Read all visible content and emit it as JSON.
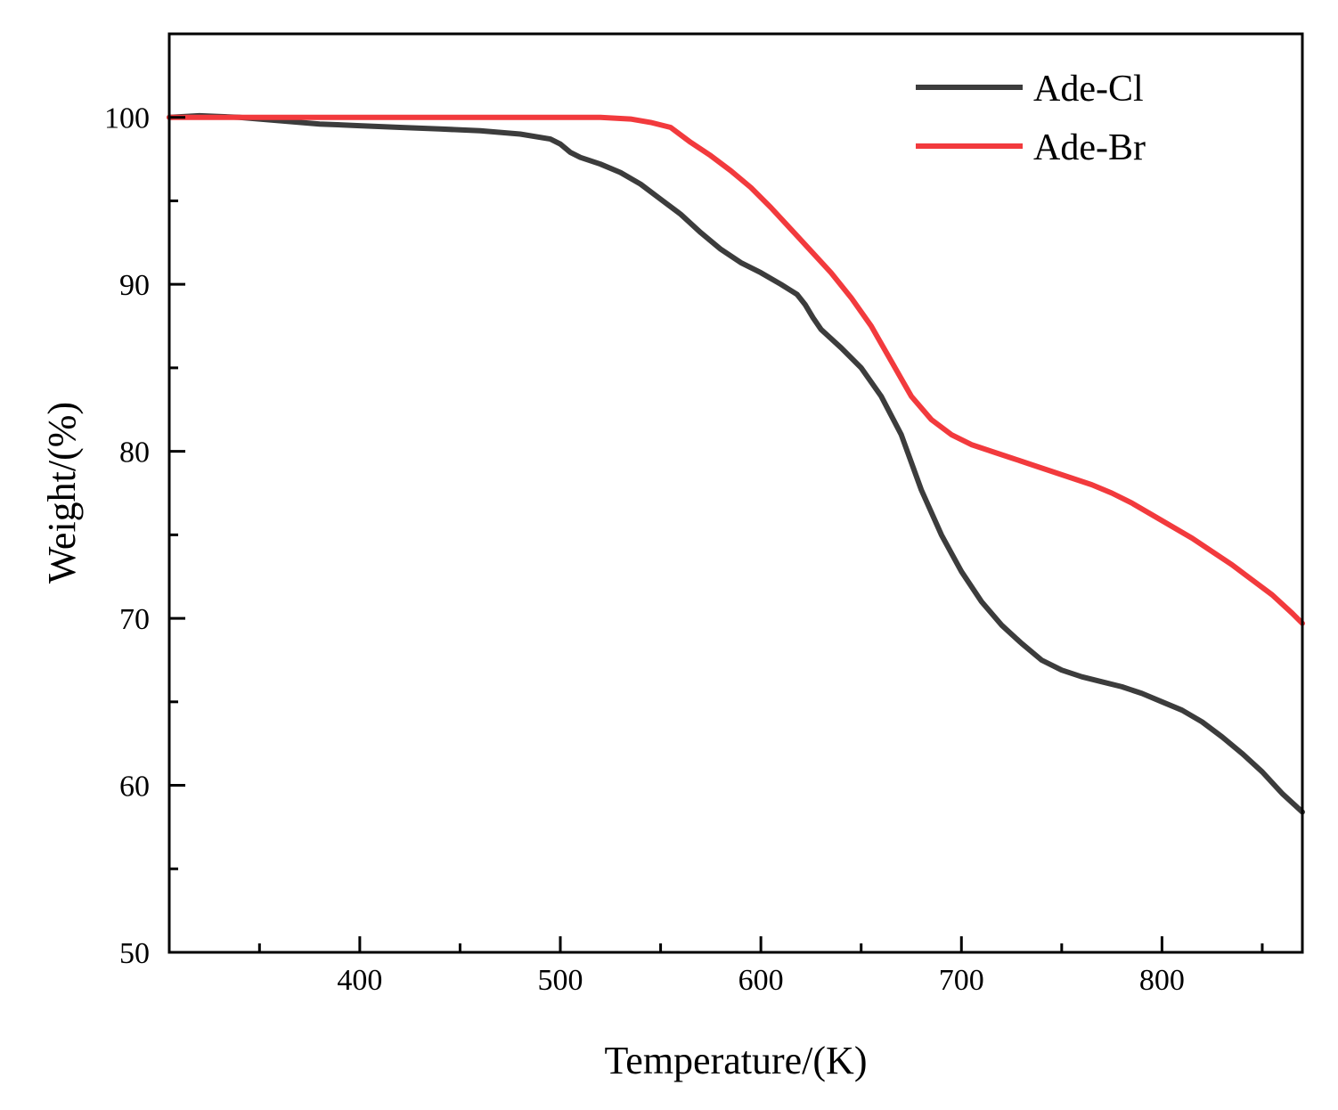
{
  "chart_data": {
    "type": "line",
    "title": "",
    "xlabel": "Temperature/(K)",
    "ylabel": "Weight/(%)",
    "xlim": [
      305,
      870
    ],
    "ylim": [
      50,
      105
    ],
    "x_ticks": [
      400,
      500,
      600,
      700,
      800
    ],
    "x_tick_labels": [
      "400",
      "500",
      "600",
      "700",
      "800"
    ],
    "x_minor_ticks": [
      350,
      450,
      550,
      650,
      750,
      850
    ],
    "y_ticks": [
      50,
      60,
      70,
      80,
      90,
      100
    ],
    "y_tick_labels": [
      "50",
      "60",
      "70",
      "80",
      "90",
      "100"
    ],
    "y_minor_ticks": [
      55,
      65,
      75,
      85,
      95
    ],
    "grid": false,
    "legend_position": "top-right",
    "series": [
      {
        "name": "Ade-Cl",
        "color": "#3c3c3c",
        "points": [
          [
            305,
            100
          ],
          [
            320,
            100.1
          ],
          [
            340,
            100
          ],
          [
            360,
            99.8
          ],
          [
            380,
            99.6
          ],
          [
            400,
            99.5
          ],
          [
            420,
            99.4
          ],
          [
            440,
            99.3
          ],
          [
            460,
            99.2
          ],
          [
            480,
            99.0
          ],
          [
            495,
            98.7
          ],
          [
            500,
            98.4
          ],
          [
            505,
            97.9
          ],
          [
            510,
            97.6
          ],
          [
            520,
            97.2
          ],
          [
            530,
            96.7
          ],
          [
            540,
            96.0
          ],
          [
            550,
            95.1
          ],
          [
            560,
            94.2
          ],
          [
            570,
            93.1
          ],
          [
            580,
            92.1
          ],
          [
            590,
            91.3
          ],
          [
            600,
            90.7
          ],
          [
            610,
            90.0
          ],
          [
            618,
            89.4
          ],
          [
            622,
            88.8
          ],
          [
            626,
            88.0
          ],
          [
            630,
            87.3
          ],
          [
            640,
            86.2
          ],
          [
            650,
            85.0
          ],
          [
            660,
            83.3
          ],
          [
            670,
            81.0
          ],
          [
            680,
            77.7
          ],
          [
            690,
            75.0
          ],
          [
            700,
            72.8
          ],
          [
            710,
            71.0
          ],
          [
            720,
            69.6
          ],
          [
            730,
            68.5
          ],
          [
            740,
            67.5
          ],
          [
            750,
            66.9
          ],
          [
            760,
            66.5
          ],
          [
            770,
            66.2
          ],
          [
            780,
            65.9
          ],
          [
            790,
            65.5
          ],
          [
            800,
            65.0
          ],
          [
            810,
            64.5
          ],
          [
            820,
            63.8
          ],
          [
            830,
            62.9
          ],
          [
            840,
            61.9
          ],
          [
            850,
            60.8
          ],
          [
            860,
            59.5
          ],
          [
            870,
            58.4
          ]
        ]
      },
      {
        "name": "Ade-Br",
        "color": "#f23a3d",
        "points": [
          [
            305,
            100
          ],
          [
            350,
            100
          ],
          [
            400,
            100
          ],
          [
            450,
            100
          ],
          [
            500,
            100
          ],
          [
            520,
            100
          ],
          [
            535,
            99.9
          ],
          [
            545,
            99.7
          ],
          [
            555,
            99.4
          ],
          [
            565,
            98.5
          ],
          [
            575,
            97.7
          ],
          [
            585,
            96.8
          ],
          [
            595,
            95.8
          ],
          [
            605,
            94.6
          ],
          [
            615,
            93.3
          ],
          [
            625,
            92.0
          ],
          [
            635,
            90.7
          ],
          [
            645,
            89.2
          ],
          [
            655,
            87.5
          ],
          [
            665,
            85.4
          ],
          [
            675,
            83.3
          ],
          [
            685,
            81.9
          ],
          [
            695,
            81.0
          ],
          [
            705,
            80.4
          ],
          [
            715,
            80.0
          ],
          [
            725,
            79.6
          ],
          [
            735,
            79.2
          ],
          [
            745,
            78.8
          ],
          [
            755,
            78.4
          ],
          [
            765,
            78.0
          ],
          [
            775,
            77.5
          ],
          [
            785,
            76.9
          ],
          [
            795,
            76.2
          ],
          [
            805,
            75.5
          ],
          [
            815,
            74.8
          ],
          [
            825,
            74.0
          ],
          [
            835,
            73.2
          ],
          [
            845,
            72.3
          ],
          [
            855,
            71.4
          ],
          [
            865,
            70.3
          ],
          [
            870,
            69.7
          ]
        ]
      }
    ]
  }
}
